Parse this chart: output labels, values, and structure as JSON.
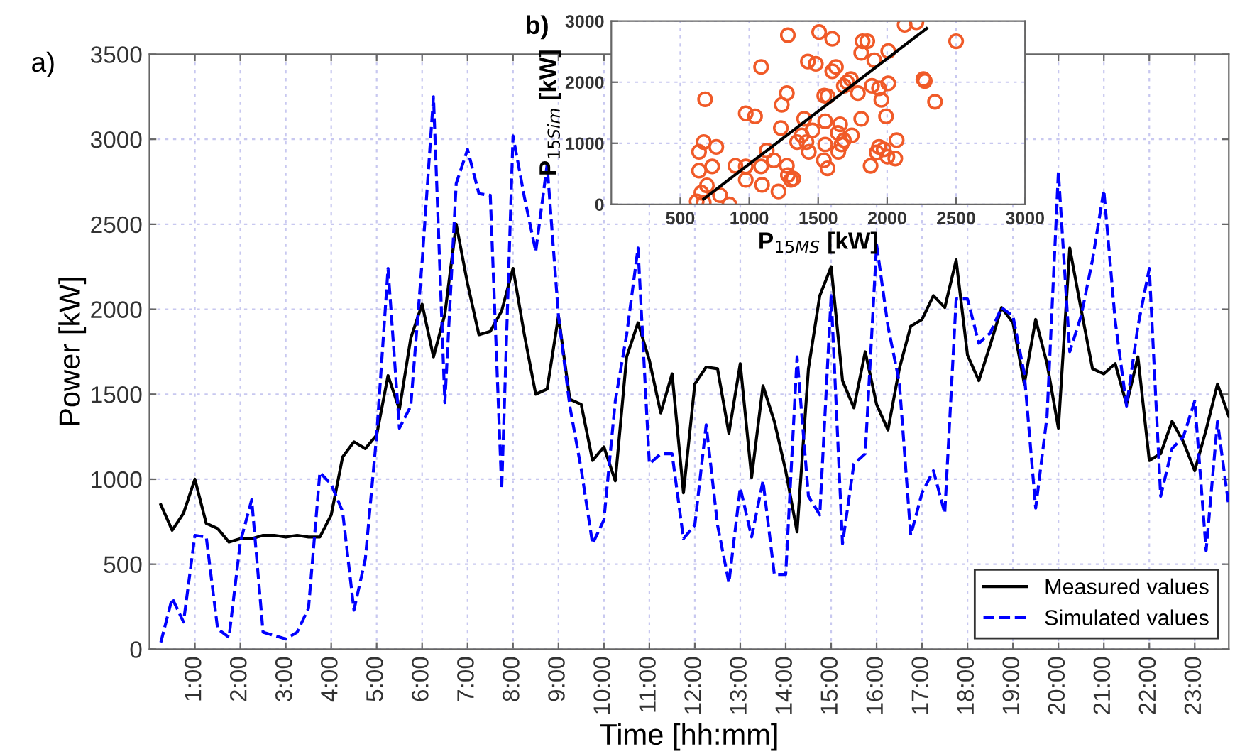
{
  "chart_data": [
    {
      "type": "line",
      "xlabel": "Time [hh:mm]",
      "ylabel": "Power [kW]",
      "annotations": [
        "a)"
      ],
      "x": [
        0.25,
        0.5,
        0.75,
        1,
        1.25,
        1.5,
        1.75,
        2,
        2.25,
        2.5,
        2.75,
        3,
        3.25,
        3.5,
        3.75,
        4,
        4.25,
        4.5,
        4.75,
        5,
        5.25,
        5.5,
        5.75,
        6,
        6.25,
        6.5,
        6.75,
        7,
        7.25,
        7.5,
        7.75,
        8,
        8.25,
        8.5,
        8.75,
        9,
        9.25,
        9.5,
        9.75,
        10,
        10.25,
        10.5,
        10.75,
        11,
        11.25,
        11.5,
        11.75,
        12,
        12.25,
        12.5,
        12.75,
        13,
        13.25,
        13.5,
        13.75,
        14,
        14.25,
        14.5,
        14.75,
        15,
        15.25,
        15.5,
        15.75,
        16,
        16.25,
        16.5,
        16.75,
        17,
        17.25,
        17.5,
        17.75,
        18,
        18.25,
        18.5,
        18.75,
        19,
        19.25,
        19.5,
        19.75,
        20,
        20.25,
        20.5,
        20.75,
        21,
        21.25,
        21.5,
        21.75,
        22,
        22.25,
        22.5,
        22.75,
        23,
        23.25,
        23.5,
        23.75
      ],
      "series": [
        {
          "name": "Measured values",
          "color": "#000000",
          "line_style": "solid",
          "values": [
            850,
            700,
            800,
            1000,
            740,
            710,
            630,
            650,
            650,
            670,
            670,
            660,
            670,
            660,
            660,
            790,
            1130,
            1220,
            1180,
            1260,
            1610,
            1410,
            1830,
            2030,
            1720,
            1970,
            2500,
            2150,
            1850,
            1870,
            1990,
            2240,
            1850,
            1500,
            1530,
            1960,
            1470,
            1440,
            1110,
            1190,
            990,
            1720,
            1920,
            1700,
            1390,
            1620,
            920,
            1560,
            1660,
            1650,
            1270,
            1680,
            1010,
            1550,
            1340,
            1050,
            690,
            1650,
            2080,
            2250,
            1580,
            1420,
            1750,
            1440,
            1290,
            1650,
            1900,
            1940,
            2080,
            2010,
            2290,
            1730,
            1580,
            1790,
            2010,
            1920,
            1560,
            1940,
            1680,
            1300,
            2360,
            2000,
            1650,
            1620,
            1680,
            1440,
            1720,
            1110,
            1150,
            1340,
            1220,
            1050,
            1290,
            1560,
            1370
          ]
        },
        {
          "name": "Simulated values",
          "color": "#0000ff",
          "line_style": "dashed",
          "values": [
            40,
            300,
            160,
            670,
            660,
            120,
            70,
            630,
            880,
            100,
            80,
            60,
            100,
            240,
            1040,
            970,
            810,
            230,
            530,
            1260,
            2240,
            1300,
            1430,
            2280,
            3250,
            1450,
            2740,
            2940,
            2680,
            2670,
            940,
            3020,
            2660,
            2340,
            2850,
            1960,
            1430,
            1060,
            620,
            760,
            1460,
            1850,
            2360,
            1090,
            1150,
            1150,
            650,
            730,
            1320,
            730,
            390,
            950,
            660,
            990,
            440,
            440,
            1720,
            900,
            790,
            2080,
            620,
            1090,
            1150,
            2380,
            1900,
            1570,
            670,
            920,
            1050,
            800,
            2060,
            2060,
            1800,
            1860,
            2010,
            1960,
            1620,
            830,
            1370,
            2810,
            1750,
            1960,
            2290,
            2700,
            1930,
            1430,
            1900,
            2240,
            900,
            1180,
            1250,
            1460,
            580,
            1340,
            840
          ]
        }
      ],
      "xlim": [
        0,
        23.75
      ],
      "xticks": [
        {
          "value": 1,
          "label": "1:00"
        },
        {
          "value": 2,
          "label": "2:00"
        },
        {
          "value": 3,
          "label": "3:00"
        },
        {
          "value": 4,
          "label": "4:00"
        },
        {
          "value": 5,
          "label": "5:00"
        },
        {
          "value": 6,
          "label": "6:00"
        },
        {
          "value": 7,
          "label": "7:00"
        },
        {
          "value": 8,
          "label": "8:00"
        },
        {
          "value": 9,
          "label": "9:00"
        },
        {
          "value": 10,
          "label": "10:00"
        },
        {
          "value": 11,
          "label": "11:00"
        },
        {
          "value": 12,
          "label": "12:00"
        },
        {
          "value": 13,
          "label": "13:00"
        },
        {
          "value": 14,
          "label": "14:00"
        },
        {
          "value": 15,
          "label": "15:00"
        },
        {
          "value": 16,
          "label": "16:00"
        },
        {
          "value": 17,
          "label": "17:00"
        },
        {
          "value": 18,
          "label": "18:00"
        },
        {
          "value": 19,
          "label": "19:00"
        },
        {
          "value": 20,
          "label": "20:00"
        },
        {
          "value": 21,
          "label": "21:00"
        },
        {
          "value": 22,
          "label": "22:00"
        },
        {
          "value": 23,
          "label": "23:00"
        }
      ],
      "ylim": [
        0,
        3500
      ],
      "yticks": [
        0,
        500,
        1000,
        1500,
        2000,
        2500,
        3000,
        3500
      ],
      "grid": true,
      "legend": "bottom right"
    },
    {
      "type": "scatter",
      "xlabel": "P$_{15MS}$ [kW]",
      "ylabel": "P$_{15Sim}$ [kW]",
      "annotations": [
        "b)"
      ],
      "series": [
        {
          "type": "scatter",
          "color": "#f05a28",
          "marker": "circle",
          "x": [
            680,
            670,
            636,
            761,
            636,
            731,
            693,
            653,
            619,
            670,
            788,
            856,
            900,
            975,
            975,
            975,
            1042,
            1086,
            1086,
            1093,
            1127,
            1178,
            1212,
            1229,
            1236,
            1273,
            1280,
            1273,
            1280,
            1320,
            1303,
            1347,
            1381,
            1398,
            1415,
            1432,
            1459,
            1425,
            1483,
            1507,
            1541,
            1551,
            1568,
            1551,
            1544,
            1568,
            1602,
            1602,
            1629,
            1642,
            1646,
            1659,
            1669,
            1686,
            1686,
            1710,
            1737,
            1744,
            1788,
            1812,
            1812,
            1822,
            1856,
            1880,
            1890,
            1907,
            1924,
            1941,
            1941,
            1958,
            1975,
            1992,
            2008,
            2008,
            2002,
            2059,
            2069,
            2127,
            2212,
            2263,
            2273,
            2347,
            2500
          ],
          "values": [
            1720,
            1020,
            860,
            940,
            550,
            620,
            310,
            190,
            50,
            30,
            150,
            0,
            630,
            620,
            400,
            1490,
            1440,
            2250,
            620,
            320,
            880,
            720,
            210,
            1250,
            1630,
            1820,
            2770,
            630,
            480,
            420,
            400,
            1020,
            1130,
            1400,
            1020,
            860,
            1210,
            2340,
            2300,
            2820,
            720,
            980,
            590,
            1360,
            1780,
            1770,
            2710,
            2180,
            2250,
            1170,
            860,
            1310,
            980,
            1050,
            1940,
            2000,
            2050,
            1130,
            1820,
            1400,
            2480,
            2670,
            2670,
            630,
            1940,
            2360,
            850,
            940,
            1900,
            1710,
            900,
            1440,
            1980,
            2510,
            780,
            750,
            1050,
            2940,
            2980,
            2050,
            2020,
            1680,
            2670
          ]
        },
        {
          "type": "line",
          "color": "#000000",
          "line_style": "solid",
          "x": [
            670,
            2286
          ],
          "values": [
            90,
            2880
          ]
        }
      ],
      "xlim": [
        0,
        3000
      ],
      "xticks": [
        500,
        1000,
        1500,
        2000,
        2500,
        3000
      ],
      "ylim": [
        0,
        3000
      ],
      "yticks": [
        0,
        1000,
        2000,
        3000
      ],
      "grid": true
    }
  ]
}
